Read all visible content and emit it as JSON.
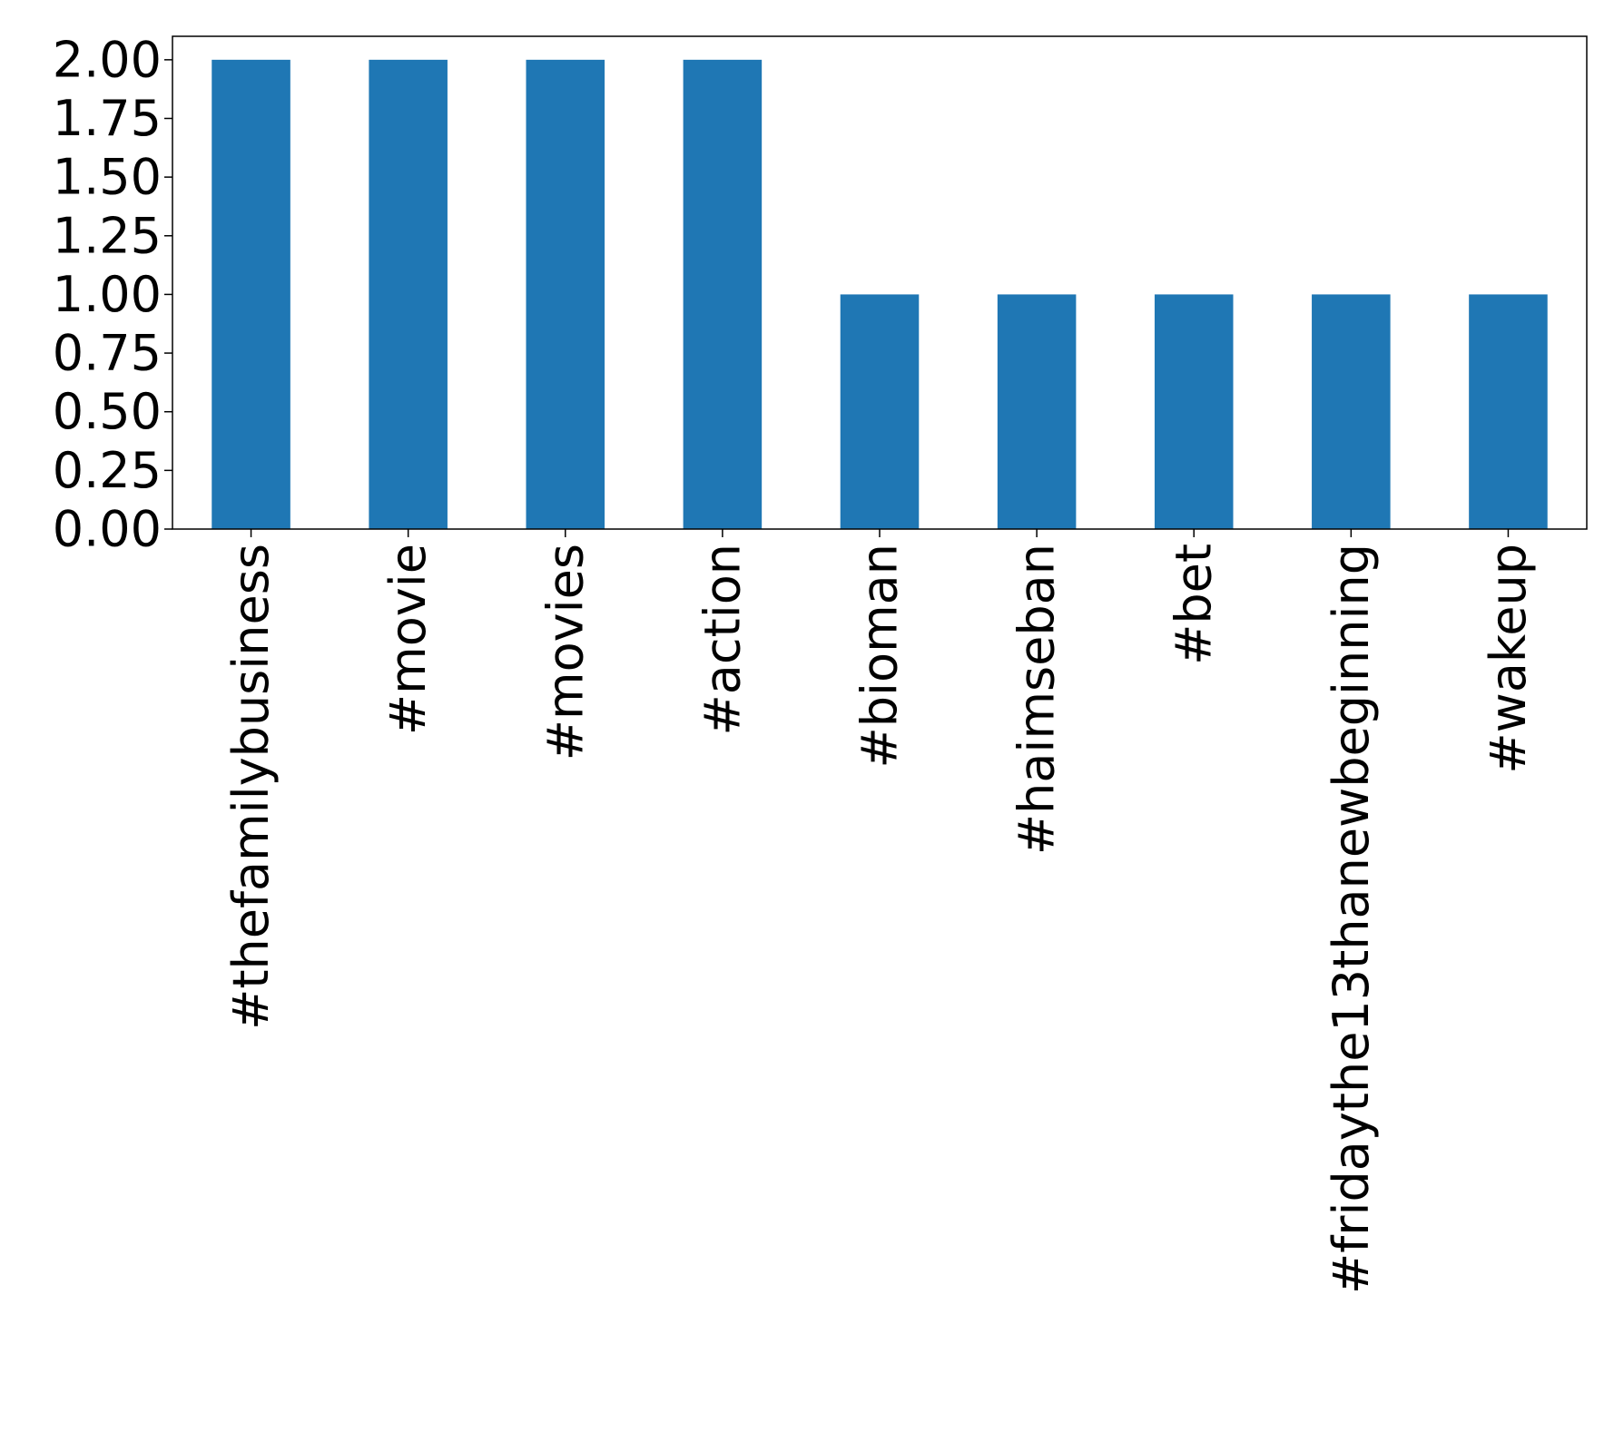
{
  "chart_data": {
    "type": "bar",
    "title": "",
    "xlabel": "",
    "ylabel": "",
    "categories": [
      "#thefamilybusiness",
      "#movie",
      "#movies",
      "#action",
      "#bioman",
      "#haimseban",
      "#bet",
      "#fridaythe13thanewbeginning",
      "#wakeup"
    ],
    "values": [
      2,
      2,
      2,
      2,
      1,
      1,
      1,
      1,
      1
    ],
    "ylim": [
      0,
      2.1
    ],
    "yticks": [
      "0.00",
      "0.25",
      "0.50",
      "0.75",
      "1.00",
      "1.25",
      "1.50",
      "1.75",
      "2.00"
    ],
    "ytick_values": [
      0,
      0.25,
      0.5,
      0.75,
      1.0,
      1.25,
      1.5,
      1.75,
      2.0
    ],
    "grid": false,
    "legend": "none",
    "bar_color": "#1f77b4",
    "tick_label_rotation": "vertical"
  }
}
